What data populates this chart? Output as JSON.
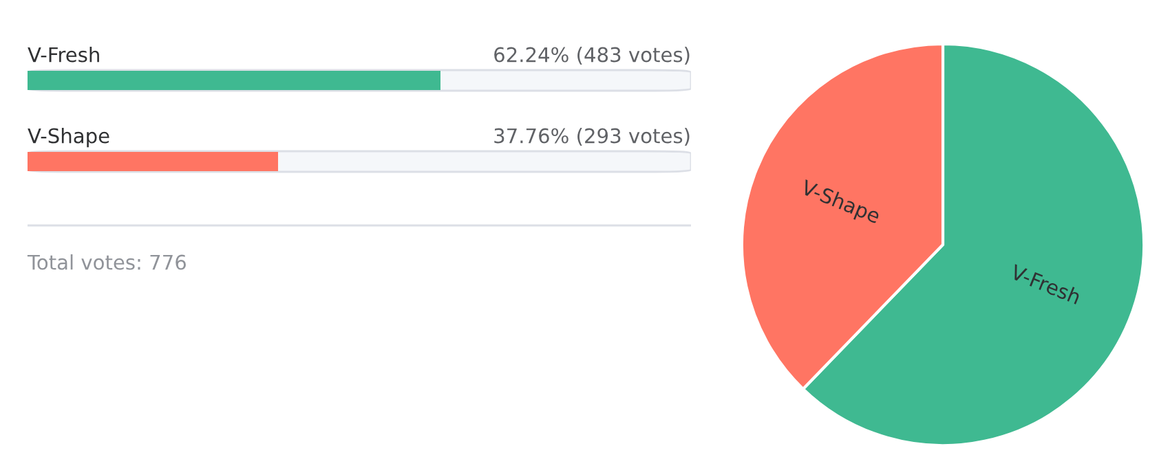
{
  "chart_data": [
    {
      "type": "bar",
      "orientation": "horizontal",
      "categories": [
        "V-Fresh",
        "V-Shape"
      ],
      "values": [
        62.24,
        37.76
      ],
      "colors": [
        "#3fb991",
        "#ff7563"
      ],
      "xlim": [
        0,
        100
      ],
      "tick_labels": false,
      "value_labels": [
        "62.24% (483 votes)",
        "37.76% (293 votes)"
      ],
      "annotations": [
        "Total votes: 776"
      ]
    },
    {
      "type": "pie",
      "categories": [
        "V-Fresh",
        "V-Shape"
      ],
      "values": [
        62.24,
        37.76
      ],
      "colors": [
        "#3fb991",
        "#ff7563"
      ]
    }
  ]
}
